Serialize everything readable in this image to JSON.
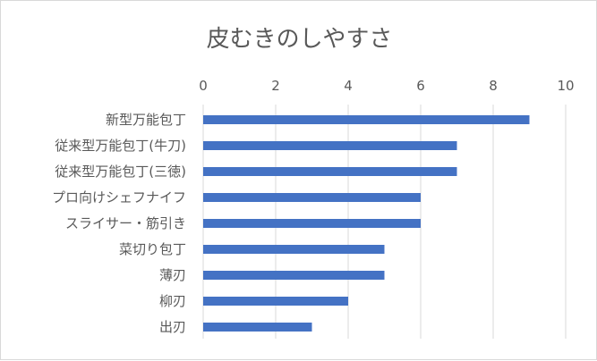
{
  "chart_data": {
    "type": "bar",
    "orientation": "horizontal",
    "title": "皮むきのしやすさ",
    "xlabel": "",
    "ylabel": "",
    "xlim": [
      0,
      10
    ],
    "ticks": [
      0,
      2,
      4,
      6,
      8,
      10
    ],
    "tick_position": "top",
    "grid": true,
    "legend": "none",
    "bar_color": "#4472c4",
    "categories": [
      "新型万能包丁",
      "従来型万能包丁(牛刀)",
      "従来型万能包丁(三徳)",
      "プロ向けシェフナイフ",
      "スライサー・筋引き",
      "菜切り包丁",
      "薄刃",
      "柳刃",
      "出刃"
    ],
    "values": [
      9,
      7,
      7,
      6,
      6,
      5,
      5,
      4,
      3
    ]
  }
}
